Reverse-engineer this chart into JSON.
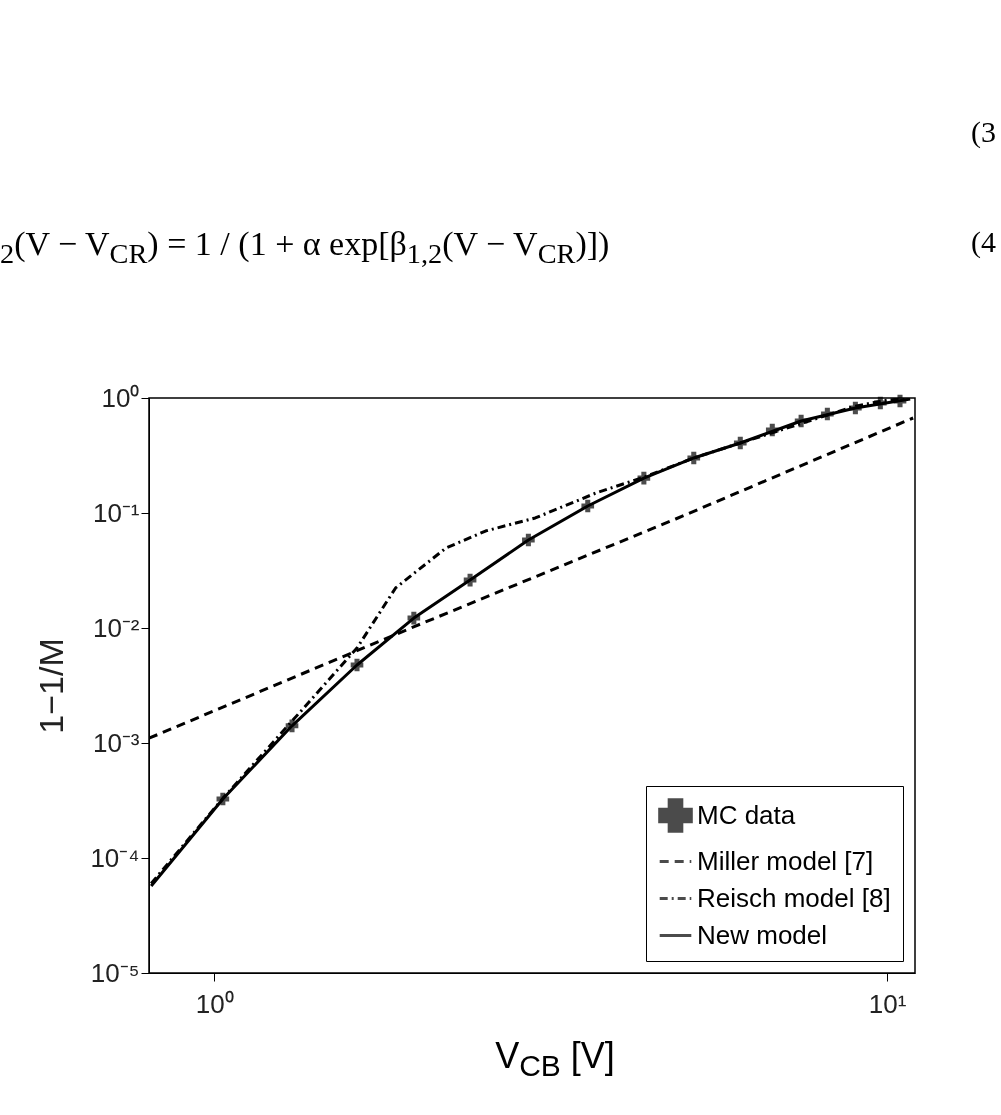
{
  "chart_data": {
    "type": "line",
    "xlabel": "V$_{CB}$ [V]",
    "ylabel": "1−1/M",
    "annotations": [
      "$_{2}$(V − V$_{CR}$) = 1 / (1 + α exp[β$_{1,2}$(V − V$_{CR}$)])",
      "(3",
      "(4"
    ],
    "log": "xy",
    "xlim": [
      0.8,
      11
    ],
    "ylim": [
      1e-05,
      1
    ],
    "xticks": [
      {
        "value": 1,
        "label": "10⁰"
      },
      {
        "value": 10,
        "label": "10¹"
      }
    ],
    "yticks": [
      {
        "value": 1e-05,
        "label": "10⁻⁵"
      },
      {
        "value": 0.0001,
        "label": "10⁻⁴"
      },
      {
        "value": 0.001,
        "label": "10⁻³"
      },
      {
        "value": 0.01,
        "label": "10⁻²"
      },
      {
        "value": 0.1,
        "label": "10⁻¹"
      },
      {
        "value": 1,
        "label": "10⁰"
      }
    ],
    "grid": false,
    "legend": "bottom right",
    "series": [
      {
        "name": "MC data",
        "type": "scatter",
        "marker": "cross",
        "color": "#000000",
        "x": [
          1.03,
          1.305,
          1.63,
          1.98,
          2.4,
          2.93,
          3.59,
          4.35,
          5.16,
          6.05,
          6.75,
          7.45,
          8.15,
          8.97,
          9.77,
          10.45
        ],
        "values": [
          0.000326,
          0.00141,
          0.00477,
          0.0122,
          0.0261,
          0.0582,
          0.115,
          0.201,
          0.301,
          0.406,
          0.527,
          0.631,
          0.726,
          0.818,
          0.905,
          0.942
        ]
      },
      {
        "name": "Miller model [7]",
        "line_style": "dashed",
        "color": "#000000",
        "x": [
          0.8,
          2.0,
          4.85,
          10.93
        ],
        "values": [
          0.0011,
          0.0105,
          0.0887,
          0.67
        ]
      },
      {
        "name": "Reisch model [8]",
        "line_style": "dashdot",
        "color": "#000000",
        "x": [
          0.806,
          1.03,
          1.305,
          1.63,
          1.86,
          2.21,
          2.53,
          3.0,
          3.69,
          4.35,
          5.16,
          8.97,
          9.9,
          10.8
        ],
        "values": [
          6e-05,
          0.00033,
          0.00155,
          0.0067,
          0.0223,
          0.0496,
          0.0697,
          0.0906,
          0.149,
          0.205,
          0.301,
          0.85,
          0.95,
          1.0
        ]
      },
      {
        "name": "New model",
        "line_style": "solid",
        "color": "#000000",
        "x": [
          0.806,
          1.03,
          1.305,
          1.63,
          1.98,
          2.4,
          2.93,
          3.59,
          4.35,
          5.16,
          6.05,
          7.45,
          8.97,
          10.82
        ],
        "values": [
          5.7e-05,
          0.000326,
          0.00141,
          0.00477,
          0.0122,
          0.0261,
          0.0582,
          0.115,
          0.201,
          0.301,
          0.406,
          0.631,
          0.818,
          0.98
        ]
      }
    ]
  }
}
